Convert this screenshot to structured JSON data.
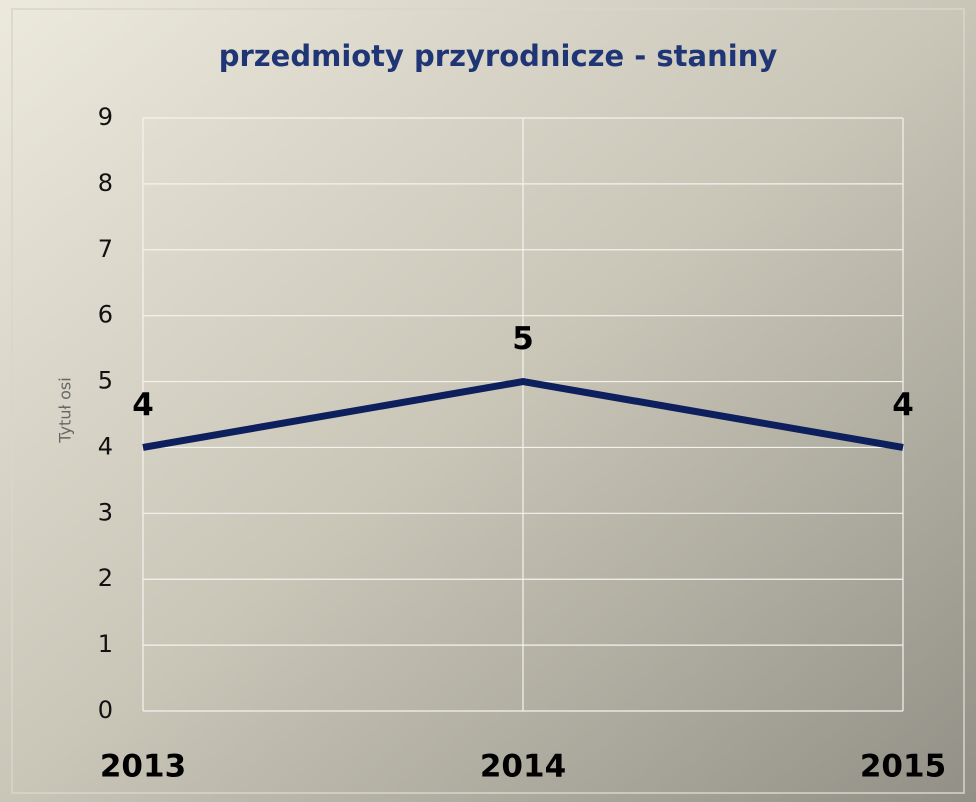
{
  "chart_data": {
    "type": "line",
    "title": "przedmioty przyrodnicze - staniny",
    "y_label": "Tytuł osi",
    "categories": [
      "2013",
      "2014",
      "2015"
    ],
    "series": [
      {
        "name": "staniny",
        "color": "#0d1f5c",
        "values": [
          4,
          5,
          4
        ]
      }
    ],
    "ylim": [
      0,
      9
    ],
    "yticks": [
      0,
      1,
      2,
      3,
      4,
      5,
      6,
      7,
      8,
      9
    ],
    "grid": true,
    "data_labels": true
  }
}
